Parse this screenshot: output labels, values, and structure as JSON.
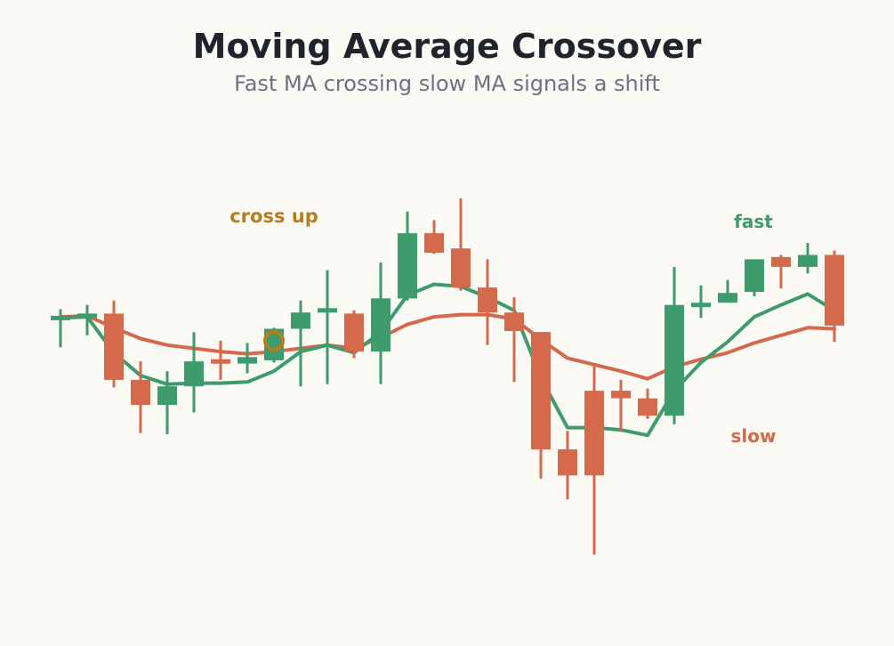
{
  "title": "Moving Average Crossover",
  "subtitle": "Fast MA crossing slow MA signals a shift",
  "colors": {
    "background": "#fbfaf5",
    "up": "#3d9b6c",
    "down": "#d4694b",
    "fast": "#3d9b6c",
    "slow": "#d4694b",
    "annotation": "#b87c1e",
    "title": "#1f232b",
    "subtitle": "#6b7180"
  },
  "labels": {
    "fast": "fast",
    "slow": "slow",
    "cross_up": "cross up"
  },
  "chart_data": {
    "type": "candlestick",
    "title": "Moving Average Crossover",
    "subtitle": "Fast MA crossing slow MA signals a shift",
    "xlabel": "",
    "ylabel": "",
    "ylim": [
      70,
      118
    ],
    "grid": false,
    "candles": [
      {
        "open": 100.0,
        "high": 101.0,
        "low": 97.5,
        "close": 100.4
      },
      {
        "open": 100.2,
        "high": 101.4,
        "low": 98.6,
        "close": 100.6
      },
      {
        "open": 100.6,
        "high": 101.8,
        "low": 93.8,
        "close": 94.5
      },
      {
        "open": 94.5,
        "high": 96.2,
        "low": 89.6,
        "close": 92.2
      },
      {
        "open": 92.2,
        "high": 95.3,
        "low": 89.5,
        "close": 93.9
      },
      {
        "open": 93.9,
        "high": 98.9,
        "low": 91.5,
        "close": 96.2
      },
      {
        "open": 96.4,
        "high": 98.1,
        "low": 94.5,
        "close": 96.0
      },
      {
        "open": 96.0,
        "high": 97.9,
        "low": 95.1,
        "close": 96.6
      },
      {
        "open": 96.3,
        "high": 99.3,
        "low": 96.1,
        "close": 99.2
      },
      {
        "open": 99.2,
        "high": 101.8,
        "low": 93.9,
        "close": 100.7
      },
      {
        "open": 100.7,
        "high": 104.6,
        "low": 94.1,
        "close": 101.1
      },
      {
        "open": 100.6,
        "high": 100.9,
        "low": 96.5,
        "close": 97.1
      },
      {
        "open": 97.1,
        "high": 105.3,
        "low": 94.1,
        "close": 102.0
      },
      {
        "open": 102.0,
        "high": 110.0,
        "low": 101.8,
        "close": 108.0
      },
      {
        "open": 108.0,
        "high": 109.2,
        "low": 106.1,
        "close": 106.2
      },
      {
        "open": 106.6,
        "high": 111.2,
        "low": 102.7,
        "close": 103.0
      },
      {
        "open": 103.0,
        "high": 105.6,
        "low": 97.7,
        "close": 100.7
      },
      {
        "open": 100.7,
        "high": 102.1,
        "low": 94.3,
        "close": 99.0
      },
      {
        "open": 98.9,
        "high": 98.9,
        "low": 85.4,
        "close": 88.1
      },
      {
        "open": 88.1,
        "high": 89.8,
        "low": 83.5,
        "close": 85.7
      },
      {
        "open": 93.5,
        "high": 96.0,
        "low": 78.4,
        "close": 85.7
      },
      {
        "open": 93.5,
        "high": 94.5,
        "low": 89.7,
        "close": 92.8
      },
      {
        "open": 92.8,
        "high": 93.7,
        "low": 90.9,
        "close": 91.2
      },
      {
        "open": 91.2,
        "high": 104.9,
        "low": 90.4,
        "close": 101.4
      },
      {
        "open": 101.2,
        "high": 103.2,
        "low": 100.2,
        "close": 101.6
      },
      {
        "open": 101.6,
        "high": 103.7,
        "low": 101.6,
        "close": 102.5
      },
      {
        "open": 102.6,
        "high": 105.6,
        "low": 102.2,
        "close": 105.6
      },
      {
        "open": 105.8,
        "high": 106.0,
        "low": 102.9,
        "close": 104.9
      },
      {
        "open": 104.9,
        "high": 107.1,
        "low": 104.3,
        "close": 106.0
      },
      {
        "open": 106.0,
        "high": 106.4,
        "low": 98.0,
        "close": 99.5
      }
    ],
    "series": [
      {
        "name": "fast",
        "values": [
          100.2,
          100.3,
          97.0,
          94.9,
          94.1,
          94.2,
          94.2,
          94.3,
          95.3,
          97.1,
          97.7,
          97.0,
          98.9,
          102.3,
          103.3,
          103.1,
          102.1,
          100.9,
          94.7,
          90.1,
          90.1,
          89.9,
          89.4,
          93.5,
          96.1,
          98.0,
          100.3,
          101.4,
          102.4,
          100.9
        ]
      },
      {
        "name": "slow",
        "values": [
          100.3,
          100.4,
          99.3,
          98.3,
          97.7,
          97.4,
          97.1,
          96.9,
          97.1,
          97.4,
          97.7,
          97.4,
          98.4,
          99.6,
          100.3,
          100.5,
          100.5,
          100.1,
          98.2,
          96.5,
          95.9,
          95.3,
          94.6,
          95.7,
          96.4,
          97.0,
          97.9,
          98.6,
          99.3,
          99.2
        ]
      }
    ],
    "annotations": [
      {
        "text": "cross up",
        "index": 9,
        "value": 98.1
      }
    ]
  }
}
